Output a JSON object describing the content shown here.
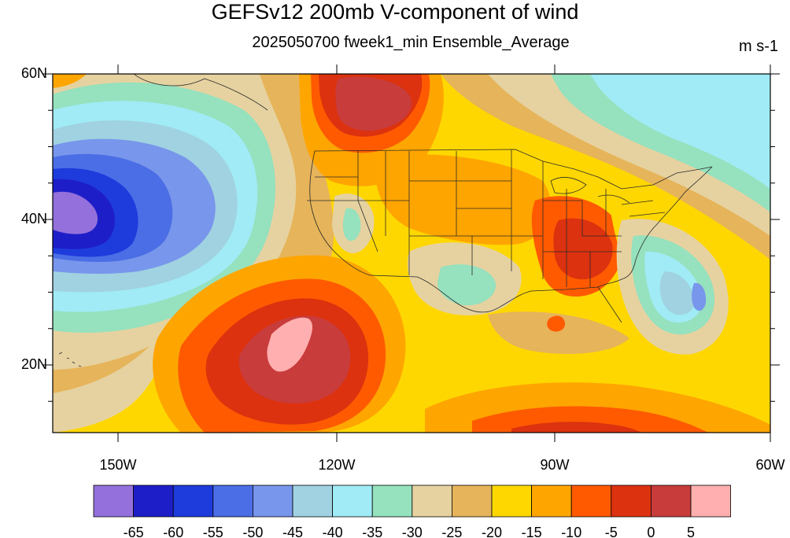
{
  "title": "GEFSv12 200mb V-component of wind",
  "subtitle": "2025050700 fweek1_min Ensemble_Average",
  "units": "m s-1",
  "axes": {
    "lat_ticks": [
      "60N",
      "40N",
      "20N"
    ],
    "lon_ticks": [
      "150W",
      "120W",
      "90W",
      "60W"
    ]
  },
  "colorbar": {
    "colors": [
      "#9370db",
      "#1e1ec8",
      "#1e3cdc",
      "#4b6ee6",
      "#7896eb",
      "#a0d2e1",
      "#a0ebf5",
      "#96e1be",
      "#e6d2a0",
      "#e6b45a",
      "#ffd700",
      "#ffa500",
      "#ff5a00",
      "#dc320f",
      "#c83c3c",
      "#ffafaf"
    ],
    "levels": [
      "-65",
      "-60",
      "-55",
      "-50",
      "-45",
      "-40",
      "-35",
      "-30",
      "-25",
      "-20",
      "-15",
      "-10",
      "-5",
      "0",
      "5"
    ]
  }
}
